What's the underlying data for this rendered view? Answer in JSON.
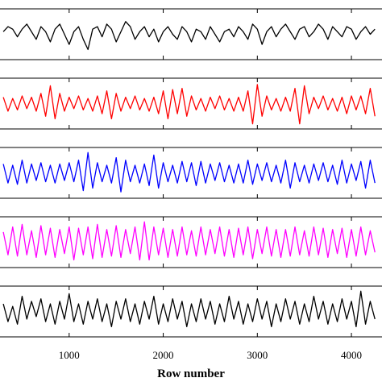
{
  "chart_data": {
    "type": "line",
    "xlabel": "Row number",
    "xlim": [
      265,
      4325
    ],
    "xticks": [
      1000,
      2000,
      3000,
      4000
    ],
    "ylim": [
      -1,
      1
    ],
    "x": [
      300,
      350,
      400,
      450,
      500,
      550,
      600,
      650,
      700,
      750,
      800,
      850,
      900,
      950,
      1000,
      1050,
      1100,
      1150,
      1200,
      1250,
      1300,
      1350,
      1400,
      1450,
      1500,
      1550,
      1600,
      1650,
      1700,
      1750,
      1800,
      1850,
      1900,
      1950,
      2000,
      2050,
      2100,
      2150,
      2200,
      2250,
      2300,
      2350,
      2400,
      2450,
      2500,
      2550,
      2600,
      2650,
      2700,
      2750,
      2800,
      2850,
      2900,
      2950,
      3000,
      3050,
      3100,
      3150,
      3200,
      3250,
      3300,
      3350,
      3400,
      3450,
      3500,
      3550,
      3600,
      3650,
      3700,
      3750,
      3800,
      3850,
      3900,
      3950,
      4000,
      4050,
      4100,
      4150,
      4200,
      4250
    ],
    "series": [
      {
        "color": "#000000",
        "values": [
          0.1,
          0.3,
          0.2,
          -0.1,
          0.2,
          0.4,
          0.1,
          -0.2,
          0.3,
          0.1,
          -0.3,
          0.2,
          0.4,
          0.0,
          -0.4,
          0.1,
          0.3,
          -0.2,
          -0.6,
          0.2,
          0.3,
          -0.1,
          0.4,
          0.2,
          -0.3,
          0.1,
          0.5,
          0.3,
          -0.2,
          0.1,
          0.3,
          -0.1,
          0.2,
          -0.3,
          0.1,
          0.3,
          0.0,
          -0.2,
          0.3,
          0.1,
          -0.3,
          0.2,
          0.1,
          -0.2,
          0.3,
          0.0,
          -0.3,
          0.1,
          0.2,
          -0.1,
          0.3,
          0.1,
          -0.2,
          0.4,
          0.2,
          -0.4,
          0.1,
          0.3,
          -0.1,
          0.2,
          0.4,
          0.1,
          -0.2,
          0.2,
          0.3,
          -0.1,
          0.1,
          0.4,
          0.2,
          -0.2,
          0.3,
          0.1,
          -0.1,
          0.3,
          0.2,
          -0.2,
          0.1,
          0.3,
          0.0,
          0.2
        ]
      },
      {
        "color": "#ff0000",
        "values": [
          0.25,
          -0.3,
          0.2,
          -0.25,
          0.3,
          -0.2,
          0.25,
          -0.3,
          0.4,
          -0.5,
          0.7,
          -0.6,
          0.4,
          -0.3,
          0.25,
          -0.2,
          0.3,
          -0.25,
          0.2,
          -0.3,
          0.3,
          -0.4,
          0.5,
          -0.6,
          0.4,
          -0.3,
          0.25,
          -0.2,
          0.3,
          -0.25,
          0.2,
          -0.3,
          0.25,
          -0.4,
          0.5,
          -0.6,
          0.55,
          -0.4,
          0.6,
          -0.5,
          0.3,
          -0.25,
          0.2,
          -0.3,
          0.25,
          -0.2,
          0.3,
          -0.25,
          0.2,
          -0.3,
          0.25,
          -0.3,
          0.5,
          -0.8,
          0.75,
          -0.5,
          0.3,
          -0.25,
          0.2,
          -0.3,
          0.25,
          -0.3,
          0.6,
          -0.8,
          0.7,
          -0.4,
          0.25,
          -0.2,
          0.3,
          -0.25,
          0.2,
          -0.3,
          0.25,
          -0.4,
          0.3,
          -0.25,
          0.3,
          -0.4,
          0.6,
          -0.5
        ]
      },
      {
        "color": "#0000ff",
        "values": [
          0.35,
          -0.4,
          0.3,
          -0.45,
          0.5,
          -0.4,
          0.35,
          -0.3,
          0.4,
          -0.35,
          0.3,
          -0.4,
          0.35,
          -0.3,
          0.4,
          -0.35,
          0.5,
          -0.7,
          0.8,
          -0.6,
          0.4,
          -0.35,
          0.3,
          -0.4,
          0.6,
          -0.75,
          0.5,
          -0.35,
          0.3,
          -0.4,
          0.35,
          -0.5,
          0.7,
          -0.6,
          0.4,
          -0.35,
          0.3,
          -0.4,
          0.45,
          -0.35,
          0.4,
          -0.5,
          0.45,
          -0.4,
          0.35,
          -0.3,
          0.4,
          -0.35,
          0.3,
          -0.4,
          0.35,
          -0.4,
          0.5,
          -0.45,
          0.35,
          -0.3,
          0.4,
          -0.35,
          0.3,
          -0.4,
          0.5,
          -0.6,
          0.4,
          -0.35,
          0.3,
          -0.4,
          0.35,
          -0.3,
          0.4,
          -0.35,
          0.3,
          -0.45,
          0.5,
          -0.4,
          0.35,
          -0.3,
          0.45,
          -0.6,
          0.5,
          -0.4
        ]
      },
      {
        "color": "#ff00ff",
        "values": [
          0.4,
          -0.5,
          0.6,
          -0.55,
          0.7,
          -0.5,
          0.45,
          -0.6,
          0.65,
          -0.5,
          0.55,
          -0.6,
          0.5,
          -0.45,
          0.6,
          -0.7,
          0.55,
          -0.5,
          0.6,
          -0.65,
          0.7,
          -0.6,
          0.5,
          -0.55,
          0.65,
          -0.6,
          0.5,
          -0.45,
          0.6,
          -0.7,
          0.8,
          -0.7,
          0.6,
          -0.5,
          0.55,
          -0.6,
          0.5,
          -0.55,
          0.6,
          -0.5,
          0.45,
          -0.55,
          0.6,
          -0.5,
          0.5,
          -0.45,
          0.6,
          -0.55,
          0.5,
          -0.6,
          0.55,
          -0.5,
          0.6,
          -0.65,
          0.5,
          -0.45,
          0.6,
          -0.55,
          0.5,
          -0.6,
          0.5,
          -0.55,
          0.6,
          -0.5,
          0.45,
          -0.55,
          0.6,
          -0.5,
          0.55,
          -0.6,
          0.5,
          -0.45,
          0.55,
          -0.6,
          0.5,
          -0.55,
          0.6,
          -0.5,
          0.45,
          -0.4
        ]
      },
      {
        "color": "#000000",
        "values": [
          0.3,
          -0.4,
          0.2,
          -0.5,
          0.6,
          -0.3,
          0.4,
          -0.2,
          0.5,
          -0.4,
          0.3,
          -0.5,
          0.4,
          -0.3,
          0.7,
          -0.4,
          0.3,
          -0.5,
          0.4,
          -0.3,
          0.5,
          -0.4,
          0.3,
          -0.6,
          0.4,
          -0.3,
          0.5,
          -0.4,
          0.3,
          -0.5,
          0.4,
          -0.3,
          0.6,
          -0.5,
          0.3,
          -0.4,
          0.5,
          -0.3,
          0.4,
          -0.6,
          0.3,
          -0.4,
          0.5,
          -0.3,
          0.4,
          -0.5,
          0.3,
          -0.4,
          0.6,
          -0.3,
          0.4,
          -0.5,
          0.3,
          -0.4,
          0.5,
          -0.3,
          0.4,
          -0.6,
          0.3,
          -0.4,
          0.5,
          -0.3,
          0.4,
          -0.5,
          0.3,
          -0.4,
          0.6,
          -0.3,
          0.4,
          -0.5,
          0.3,
          -0.4,
          0.5,
          -0.3,
          0.4,
          -0.6,
          0.8,
          -0.5,
          0.4,
          -0.3
        ]
      }
    ]
  }
}
